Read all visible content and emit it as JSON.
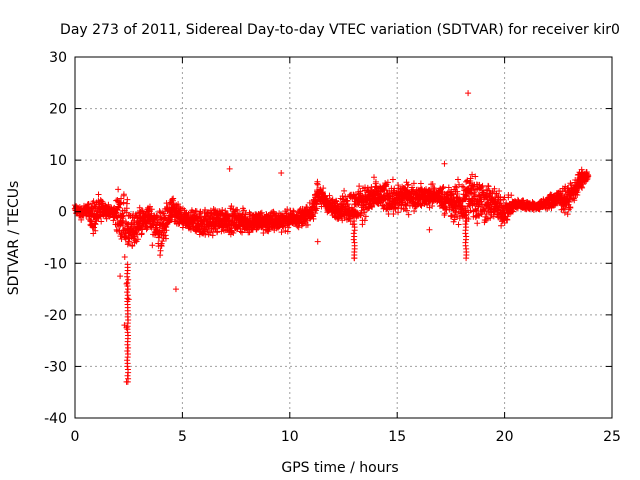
{
  "chart_data": {
    "type": "scatter",
    "title": "Day 273 of 2011, Sidereal Day-to-day VTEC variation (SDTVAR) for receiver kir0",
    "xlabel": "GPS time / hours",
    "ylabel": "SDTVAR / TECUs",
    "xlim": [
      0,
      25
    ],
    "ylim": [
      -40,
      30
    ],
    "xticks": [
      0,
      5,
      10,
      15,
      20,
      25
    ],
    "yticks": [
      -40,
      -30,
      -20,
      -10,
      0,
      10,
      20,
      30
    ],
    "grid": true,
    "marker": "plus",
    "color": "#ff0000",
    "series": [
      {
        "name": "SDTVAR",
        "band": [
          {
            "x": 0.0,
            "lo": -1,
            "hi": 2
          },
          {
            "x": 0.3,
            "lo": -2,
            "hi": 1.5
          },
          {
            "x": 0.6,
            "lo": -1,
            "hi": 2
          },
          {
            "x": 0.8,
            "lo": -6,
            "hi": 4
          },
          {
            "x": 1.0,
            "lo": -5,
            "hi": 4
          },
          {
            "x": 1.3,
            "lo": -2,
            "hi": 3
          },
          {
            "x": 1.7,
            "lo": -1,
            "hi": 1
          },
          {
            "x": 2.0,
            "lo": -6,
            "hi": 5
          },
          {
            "x": 2.3,
            "lo": -10,
            "hi": 6
          },
          {
            "x": 2.6,
            "lo": -10,
            "hi": 1
          },
          {
            "x": 3.0,
            "lo": -6,
            "hi": 2
          },
          {
            "x": 3.5,
            "lo": -4,
            "hi": 2
          },
          {
            "x": 4.0,
            "lo": -10,
            "hi": 2
          },
          {
            "x": 4.5,
            "lo": -4,
            "hi": 4
          },
          {
            "x": 5.0,
            "lo": -4,
            "hi": 1
          },
          {
            "x": 6.0,
            "lo": -6,
            "hi": 1.5
          },
          {
            "x": 7.0,
            "lo": -5,
            "hi": 2
          },
          {
            "x": 8.0,
            "lo": -5,
            "hi": 1
          },
          {
            "x": 9.0,
            "lo": -5,
            "hi": 1
          },
          {
            "x": 10.0,
            "lo": -4,
            "hi": 1
          },
          {
            "x": 11.0,
            "lo": -3,
            "hi": 2
          },
          {
            "x": 11.3,
            "lo": 0,
            "hi": 7
          },
          {
            "x": 12.0,
            "lo": -2,
            "hi": 3
          },
          {
            "x": 13.0,
            "lo": -4,
            "hi": 6
          },
          {
            "x": 14.0,
            "lo": -1,
            "hi": 7
          },
          {
            "x": 15.0,
            "lo": -2,
            "hi": 7
          },
          {
            "x": 16.0,
            "lo": 0,
            "hi": 6
          },
          {
            "x": 17.0,
            "lo": 0,
            "hi": 6
          },
          {
            "x": 17.5,
            "lo": -3,
            "hi": 6
          },
          {
            "x": 18.0,
            "lo": -5,
            "hi": 8
          },
          {
            "x": 18.5,
            "lo": -4,
            "hi": 11
          },
          {
            "x": 19.0,
            "lo": -4,
            "hi": 8
          },
          {
            "x": 19.5,
            "lo": -3,
            "hi": 6
          },
          {
            "x": 20.0,
            "lo": -4,
            "hi": 4
          },
          {
            "x": 20.5,
            "lo": 0,
            "hi": 3
          },
          {
            "x": 21.5,
            "lo": 0,
            "hi": 2
          },
          {
            "x": 22.5,
            "lo": 0,
            "hi": 5
          },
          {
            "x": 23.0,
            "lo": -1,
            "hi": 6
          },
          {
            "x": 23.5,
            "lo": 3,
            "hi": 9
          },
          {
            "x": 23.9,
            "lo": 6,
            "hi": 8
          }
        ],
        "outliers": [
          {
            "x": 2.4,
            "y": -33
          },
          {
            "x": 2.4,
            "y": -22.5
          },
          {
            "x": 2.3,
            "y": -22
          },
          {
            "x": 2.5,
            "y": -17
          },
          {
            "x": 2.4,
            "y": -14
          },
          {
            "x": 2.1,
            "y": -12.5
          },
          {
            "x": 3.6,
            "y": -6.5
          },
          {
            "x": 4.7,
            "y": -15
          },
          {
            "x": 7.2,
            "y": 8.3
          },
          {
            "x": 9.6,
            "y": 7.5
          },
          {
            "x": 11.3,
            "y": -5.8
          },
          {
            "x": 13.0,
            "y": -9
          },
          {
            "x": 16.5,
            "y": -3.5
          },
          {
            "x": 17.2,
            "y": 9.3
          },
          {
            "x": 18.3,
            "y": 23
          }
        ],
        "spikes": [
          {
            "x": 2.45,
            "lo": -33,
            "hi": -10
          },
          {
            "x": 13.0,
            "lo": -9,
            "hi": 0
          },
          {
            "x": 18.2,
            "lo": -9,
            "hi": 0
          }
        ]
      }
    ]
  }
}
